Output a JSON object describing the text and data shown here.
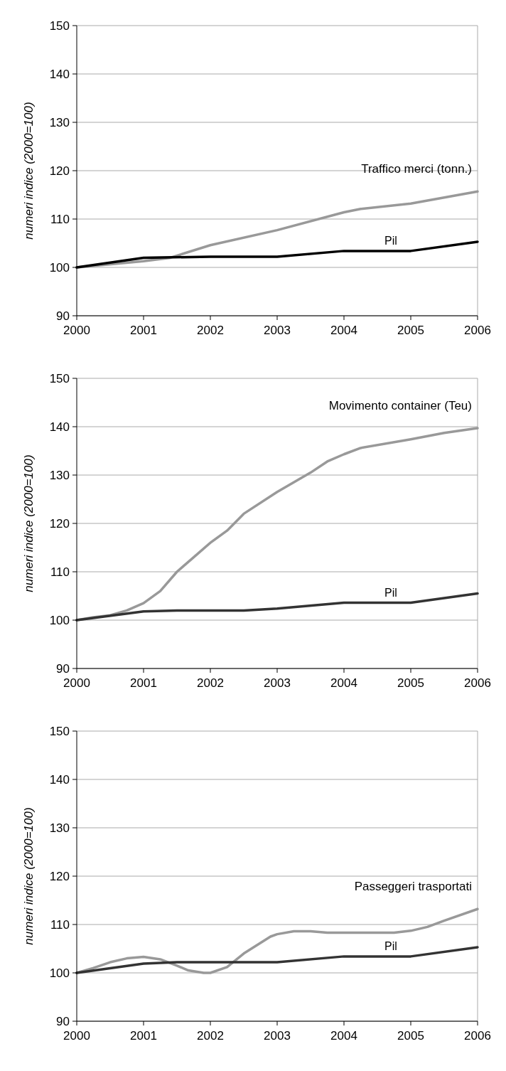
{
  "chart_data": [
    {
      "type": "line",
      "ylabel": "numeri indice (2000=100)",
      "xlim": [
        2000,
        2006
      ],
      "xticks": [
        2000,
        2001,
        2002,
        2003,
        2004,
        2005,
        2006
      ],
      "ylim": [
        90,
        150
      ],
      "yticks": [
        90,
        100,
        110,
        120,
        130,
        140,
        150
      ],
      "grid": "y",
      "series": [
        {
          "name": "Traffico merci (tonn.)",
          "color": "#999999",
          "x": [
            2000,
            2001,
            2001.4,
            2002,
            2003,
            2004,
            2004.25,
            2005,
            2006
          ],
          "values": [
            100,
            101.3,
            102,
            104.6,
            107.7,
            111.4,
            112.1,
            113.2,
            115.7
          ]
        },
        {
          "name": "Pil",
          "color": "#000000",
          "x": [
            2000,
            2001,
            2002,
            2003,
            2004,
            2005,
            2006
          ],
          "values": [
            100,
            102,
            102.2,
            102.2,
            103.4,
            103.4,
            105.3
          ]
        }
      ]
    },
    {
      "type": "line",
      "ylabel": "numeri indice (2000=100)",
      "xlim": [
        2000,
        2006
      ],
      "xticks": [
        2000,
        2001,
        2002,
        2003,
        2004,
        2005,
        2006
      ],
      "ylim": [
        90,
        150
      ],
      "yticks": [
        90,
        100,
        110,
        120,
        130,
        140,
        150
      ],
      "grid": "y",
      "series": [
        {
          "name": "Movimento container (Teu)",
          "color": "#999999",
          "x": [
            2000,
            2000.25,
            2000.5,
            2000.75,
            2001,
            2001.25,
            2001.5,
            2001.75,
            2002,
            2002.25,
            2002.5,
            2003,
            2003.5,
            2003.75,
            2004,
            2004.25,
            2005,
            2005.5,
            2006
          ],
          "values": [
            100,
            100.6,
            101,
            102,
            103.5,
            106,
            110,
            113,
            116,
            118.5,
            122,
            126.5,
            130.5,
            132.8,
            134.3,
            135.6,
            137.4,
            138.7,
            139.7
          ]
        },
        {
          "name": "Pil",
          "color": "#333333",
          "x": [
            2000,
            2001,
            2001.5,
            2002.5,
            2003,
            2004,
            2005,
            2006
          ],
          "values": [
            100,
            101.8,
            102,
            102,
            102.4,
            103.6,
            103.6,
            105.5
          ]
        }
      ]
    },
    {
      "type": "line",
      "ylabel": "numeri indice (2000=100)",
      "xlim": [
        2000,
        2006
      ],
      "xticks": [
        2000,
        2001,
        2002,
        2003,
        2004,
        2005,
        2006
      ],
      "ylim": [
        90,
        150
      ],
      "yticks": [
        90,
        100,
        110,
        120,
        130,
        140,
        150
      ],
      "grid": "y",
      "series": [
        {
          "name": "Passeggeri trasportati",
          "color": "#999999",
          "x": [
            2000,
            2000.25,
            2000.5,
            2000.75,
            2001,
            2001.25,
            2001.5,
            2001.67,
            2001.9,
            2002,
            2002.25,
            2002.5,
            2002.9,
            2003,
            2003.25,
            2003.5,
            2003.75,
            2004.75,
            2005,
            2005.25,
            2005.5,
            2006
          ],
          "values": [
            100,
            101,
            102.2,
            103,
            103.3,
            102.8,
            101.5,
            100.5,
            100,
            100,
            101.2,
            104,
            107.5,
            108,
            108.6,
            108.6,
            108.3,
            108.3,
            108.7,
            109.5,
            110.8,
            113.2
          ]
        },
        {
          "name": "Pil",
          "color": "#333333",
          "x": [
            2000,
            2001,
            2001.5,
            2003,
            2004,
            2005,
            2006
          ],
          "values": [
            100,
            101.9,
            102.2,
            102.2,
            103.4,
            103.4,
            105.3
          ]
        }
      ]
    }
  ]
}
